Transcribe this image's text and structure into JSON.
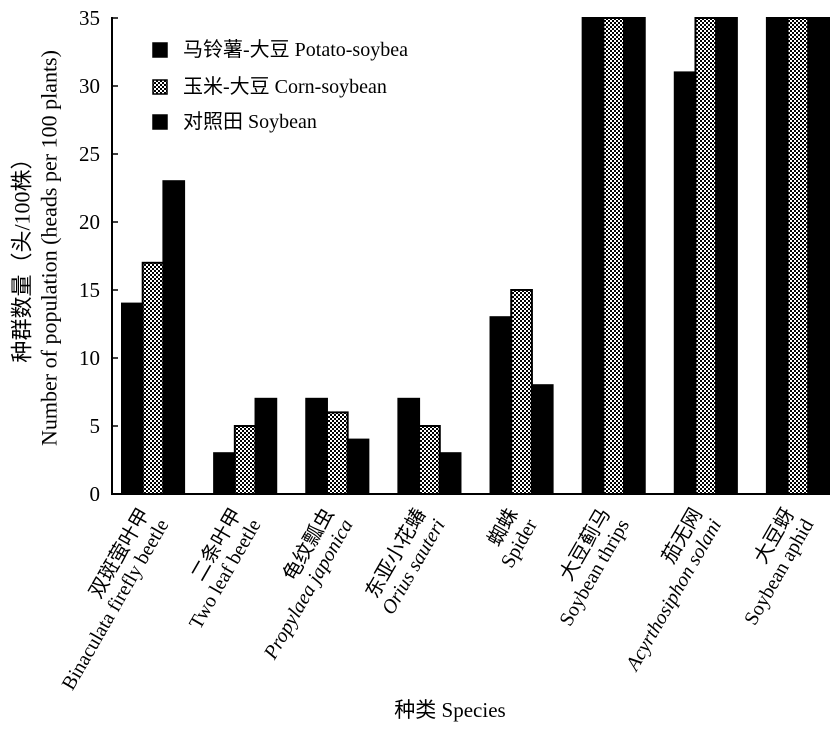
{
  "chart_data": {
    "type": "bar",
    "categories": [
      {
        "zh": "双斑萤叶甲",
        "en": "Binaculata firefly beetle",
        "italic": false
      },
      {
        "zh": "二条叶甲",
        "en": "Two leaf beetle",
        "italic": false
      },
      {
        "zh": "龟纹瓢虫",
        "en": "Propylaea japonica",
        "italic": true
      },
      {
        "zh": "东亚小花蝽",
        "en": "Orius sauteri",
        "italic": true
      },
      {
        "zh": "蜘蛛",
        "en": "Spider",
        "italic": false
      },
      {
        "zh": "大豆蓟马",
        "en": "Soybean thrips",
        "italic": false
      },
      {
        "zh": "茄无网",
        "en": "Acyrthosiphon solani",
        "italic": true
      },
      {
        "zh": "大豆蚜",
        "en": "Soybean aphid",
        "italic": false
      }
    ],
    "series": [
      {
        "name": "马铃薯-大豆 Potato-soybea",
        "pattern": "solid",
        "color": "#000000",
        "values": [
          14,
          3,
          7,
          7,
          13,
          35,
          31,
          35
        ]
      },
      {
        "name": "玉米-大豆 Corn-soybean",
        "pattern": "checkered",
        "color": "#000000",
        "values": [
          17,
          5,
          6,
          5,
          15,
          35,
          35,
          35
        ]
      },
      {
        "name": "对照田 Soybean",
        "pattern": "solid",
        "color": "#000000",
        "values": [
          23,
          7,
          4,
          3,
          8,
          35,
          35,
          35
        ]
      }
    ],
    "xlabel": "种类 Species",
    "ylabel": [
      "种群数量（头/100株）",
      "Number of population (heads per 100 plants)"
    ],
    "ylim": [
      0,
      35
    ],
    "yticks": [
      0,
      5,
      10,
      15,
      20,
      25,
      30,
      35
    ],
    "legend": "top-left",
    "grid": false
  }
}
